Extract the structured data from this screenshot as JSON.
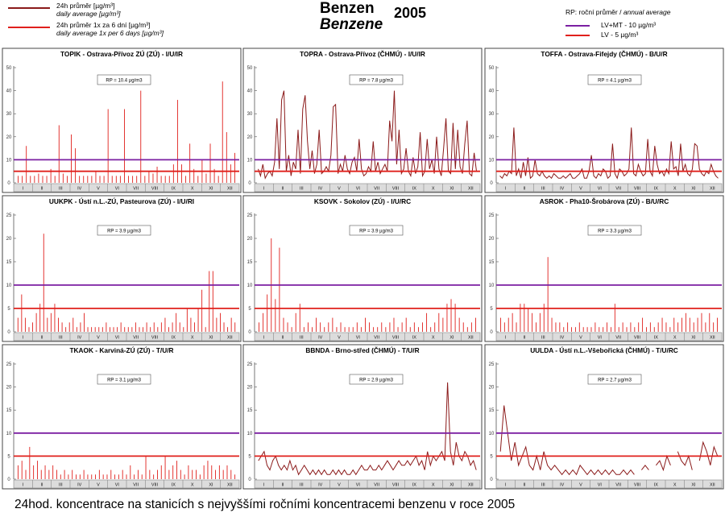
{
  "legend": {
    "daily": {
      "cz": "24h průměr [µg/m³]",
      "en": "daily average [µg/m³]",
      "color": "#8b1a1a"
    },
    "sixday": {
      "cz": "24h průměr 1x za 6 dní [µg/m³]",
      "en": "daily average 1x per 6 days [µg/m³]",
      "color": "#e0201c"
    }
  },
  "title": {
    "cz": "Benzen",
    "en": "Benzene",
    "year": "2005"
  },
  "limits_legend": {
    "header_cz": "RP: roční průměr /",
    "header_en": "annual average",
    "lvmt": {
      "label": "LV+MT  -  10  µg/m³",
      "color": "#7b1fa2"
    },
    "lv": {
      "label": "LV     -  5  µg/m³",
      "color": "#e0201c"
    }
  },
  "caption": "24hod. koncentrace na stanicích s nejvyššími ročními koncentracemi benzenu v roce 2005",
  "chart_data": [
    {
      "type": "bar",
      "title": "TOPIK - Ostrava-Přívoz ZÚ (ZÚ) - I/U/IR",
      "rp_label": "RP = 10.4 µg/m3",
      "ylim": [
        0,
        50
      ],
      "yticks": [
        0,
        10,
        20,
        30,
        40,
        50
      ],
      "limits": [
        10,
        5
      ],
      "month_labels": [
        "I",
        "II",
        "III",
        "IV",
        "V",
        "VI",
        "VII",
        "VIII",
        "IX",
        "X",
        "XI",
        "XII"
      ],
      "series": [
        {
          "style": "bars",
          "values": [
            3,
            3,
            16,
            3,
            3,
            4,
            3,
            3,
            6,
            3,
            25,
            4,
            3,
            21,
            15,
            3,
            3,
            3,
            3,
            5,
            3,
            3,
            32,
            3,
            3,
            3,
            32,
            3,
            3,
            3,
            40,
            3,
            5,
            4,
            7,
            3,
            3,
            3,
            8,
            36,
            8,
            3,
            17,
            6,
            3,
            10,
            4,
            17,
            6,
            3,
            44,
            22,
            8,
            13
          ]
        }
      ]
    },
    {
      "type": "line",
      "title": "TOPRA - Ostrava-Přívoz (ČHMÚ) - I/U/IR",
      "rp_label": "RP = 7.8 µg/m3",
      "ylim": [
        0,
        50
      ],
      "yticks": [
        0,
        10,
        20,
        30,
        40,
        50
      ],
      "limits": [
        10,
        5
      ],
      "month_labels": [
        "I",
        "II",
        "III",
        "IV",
        "V",
        "VI",
        "VII",
        "VIII",
        "IX",
        "X",
        "XI",
        "XII"
      ],
      "series": [
        {
          "style": "line",
          "values": [
            6,
            3,
            8,
            2,
            4,
            5,
            3,
            9,
            28,
            6,
            36,
            40,
            5,
            12,
            3,
            9,
            6,
            23,
            4,
            32,
            38,
            18,
            6,
            14,
            4,
            8,
            23,
            4,
            5,
            7,
            5,
            12,
            33,
            34,
            4,
            8,
            5,
            12,
            6,
            4,
            9,
            11,
            5,
            19,
            6,
            3,
            4,
            7,
            5,
            18,
            5,
            9,
            4,
            6,
            8,
            5,
            27,
            18,
            40,
            8,
            23,
            4,
            6,
            15,
            5,
            3,
            11,
            4,
            7,
            22,
            3,
            5,
            19,
            6,
            10,
            4,
            20,
            6,
            3,
            15,
            28,
            5,
            4,
            26,
            6,
            23,
            7,
            4,
            17,
            27,
            4,
            3,
            13,
            5
          ]
        }
      ]
    },
    {
      "type": "line",
      "title": "TOFFA - Ostrava-Fifejdy (ČHMÚ) - B/U/R",
      "rp_label": "RP = 4.1 µg/m3",
      "ylim": [
        0,
        50
      ],
      "yticks": [
        0,
        10,
        20,
        30,
        40,
        50
      ],
      "limits": [
        10,
        5
      ],
      "month_labels": [
        "I",
        "II",
        "III",
        "IV",
        "V",
        "VI",
        "VII",
        "VIII",
        "IX",
        "X",
        "XI",
        "XII"
      ],
      "series": [
        {
          "style": "line",
          "values": [
            3,
            2,
            4,
            3,
            5,
            4,
            24,
            3,
            6,
            2,
            9,
            3,
            11,
            2,
            3,
            10,
            4,
            3,
            5,
            3,
            2,
            3,
            2,
            4,
            3,
            2,
            2,
            3,
            2,
            3,
            4,
            2,
            2,
            3,
            4,
            6,
            2,
            2,
            5,
            12,
            3,
            2,
            4,
            3,
            6,
            5,
            2,
            3,
            17,
            4,
            2,
            6,
            5,
            3,
            4,
            6,
            24,
            4,
            3,
            8,
            5,
            3,
            4,
            19,
            5,
            3,
            16,
            8,
            4,
            5,
            3,
            6,
            4,
            18,
            6,
            7,
            3,
            17,
            5,
            8,
            4,
            3,
            6,
            17,
            16,
            6,
            4,
            3,
            5,
            4,
            8,
            5,
            3,
            2
          ]
        }
      ]
    },
    {
      "type": "bar",
      "title": "UUKPK - Ústí n.L.-ZÚ, Pasteurova (ZÚ) - I/U/RI",
      "rp_label": "RP = 3.9 µg/m3",
      "ylim": [
        0,
        25
      ],
      "yticks": [
        0,
        5,
        10,
        15,
        20,
        25
      ],
      "limits": [
        10,
        5
      ],
      "month_labels": [
        "I",
        "II",
        "III",
        "IV",
        "V",
        "VI",
        "VII",
        "VIII",
        "IX",
        "X",
        "XI",
        "XII"
      ],
      "series": [
        {
          "style": "bars",
          "values": [
            3,
            8,
            3,
            1,
            2,
            4,
            6,
            21,
            3,
            4,
            6,
            3,
            2,
            1,
            2,
            3,
            1,
            2,
            4,
            1,
            1,
            1,
            1,
            1,
            2,
            1,
            1,
            1,
            2,
            1,
            1,
            1,
            2,
            1,
            1,
            2,
            1,
            2,
            1,
            2,
            3,
            1,
            2,
            4,
            2,
            1,
            5,
            3,
            2,
            5,
            9,
            1,
            13,
            13,
            3,
            4,
            2,
            1,
            3,
            2
          ]
        }
      ]
    },
    {
      "type": "bar",
      "title": "KSOVK - Sokolov (ZÚ) - I/U/RC",
      "rp_label": "RP = 3.9 µg/m3",
      "ylim": [
        0,
        25
      ],
      "yticks": [
        0,
        5,
        10,
        15,
        20,
        25
      ],
      "limits": [
        10,
        5
      ],
      "month_labels": [
        "I",
        "II",
        "III",
        "IV",
        "V",
        "VI",
        "VII",
        "VIII",
        "IX",
        "X",
        "XI",
        "XII"
      ],
      "series": [
        {
          "style": "bars",
          "values": [
            2,
            4,
            8,
            20,
            7,
            18,
            3,
            2,
            1,
            4,
            6,
            1,
            2,
            1,
            3,
            2,
            1,
            2,
            3,
            1,
            2,
            1,
            1,
            1,
            2,
            1,
            3,
            2,
            1,
            1,
            2,
            1,
            2,
            3,
            1,
            2,
            3,
            1,
            2,
            1,
            2,
            4,
            1,
            2,
            4,
            3,
            6,
            7,
            6,
            3,
            2,
            1,
            2,
            3
          ]
        }
      ]
    },
    {
      "type": "bar",
      "title": "ASROK - Pha10-Šrobárova (ZÚ) - B/U/RC",
      "rp_label": "RP = 3.3 µg/m3",
      "ylim": [
        0,
        25
      ],
      "yticks": [
        0,
        5,
        10,
        15,
        20,
        25
      ],
      "limits": [
        10,
        5
      ],
      "month_labels": [
        "I",
        "II",
        "III",
        "IV",
        "V",
        "VI",
        "VII",
        "VIII",
        "IX",
        "X",
        "XI",
        "XII"
      ],
      "series": [
        {
          "style": "bars",
          "values": [
            3,
            2,
            3,
            4,
            2,
            6,
            6,
            5,
            4,
            2,
            4,
            6,
            16,
            3,
            2,
            2,
            1,
            2,
            1,
            1,
            2,
            1,
            1,
            1,
            2,
            1,
            1,
            2,
            1,
            6,
            1,
            2,
            1,
            2,
            1,
            2,
            3,
            1,
            2,
            1,
            2,
            3,
            2,
            1,
            3,
            2,
            3,
            4,
            3,
            2,
            3,
            4,
            2,
            4,
            2,
            3
          ]
        }
      ]
    },
    {
      "type": "bar",
      "title": "TKAOK - Karviná-ZÚ (ZÚ) - T/U/R",
      "rp_label": "RP = 3.1 µg/m3",
      "ylim": [
        0,
        25
      ],
      "yticks": [
        0,
        5,
        10,
        15,
        20,
        25
      ],
      "limits": [
        10,
        5
      ],
      "month_labels": [
        "I",
        "II",
        "III",
        "IV",
        "V",
        "VI",
        "VII",
        "VIII",
        "IX",
        "X",
        "XI",
        "XII"
      ],
      "series": [
        {
          "style": "bars",
          "values": [
            3,
            4,
            2,
            7,
            3,
            4,
            2,
            3,
            2,
            3,
            2,
            1,
            2,
            1,
            2,
            1,
            1,
            2,
            1,
            1,
            1,
            2,
            1,
            1,
            2,
            1,
            1,
            2,
            1,
            3,
            1,
            2,
            1,
            5,
            2,
            1,
            2,
            3,
            5,
            2,
            3,
            4,
            2,
            1,
            3,
            2,
            2,
            1,
            3,
            4,
            3,
            2,
            3,
            2,
            3,
            2,
            1
          ]
        }
      ]
    },
    {
      "type": "line",
      "title": "BBNDA - Brno-střed (ČHMÚ) - T/U/R",
      "rp_label": "RP = 2.9 µg/m3",
      "ylim": [
        0,
        25
      ],
      "yticks": [
        0,
        5,
        10,
        15,
        20,
        25
      ],
      "limits": [
        10,
        5
      ],
      "month_labels": [
        "I",
        "II",
        "III",
        "IV",
        "V",
        "VI",
        "VII",
        "VIII",
        "IX",
        "X",
        "XI",
        "XII"
      ],
      "series": [
        {
          "style": "line",
          "values": [
            4,
            5,
            6,
            3,
            2,
            4,
            5,
            3,
            2,
            3,
            2,
            4,
            2,
            3,
            1,
            2,
            3,
            2,
            1,
            2,
            1,
            2,
            1,
            2,
            1,
            1,
            2,
            1,
            2,
            1,
            2,
            1,
            1,
            2,
            1,
            2,
            3,
            2,
            2,
            3,
            2,
            2,
            3,
            2,
            3,
            4,
            3,
            2,
            3,
            4,
            3,
            3,
            4,
            3,
            4,
            5,
            3,
            4,
            2,
            6,
            3,
            5,
            4,
            5,
            6,
            4,
            21,
            6,
            3,
            8,
            5,
            4,
            6,
            5,
            3,
            4,
            2
          ]
        }
      ]
    },
    {
      "type": "line",
      "title": "UULDA - Ústí n.L.-Všebořická (ČHMÚ) - T/U/RC",
      "rp_label": "RP = 2.7 µg/m3",
      "ylim": [
        0,
        25
      ],
      "yticks": [
        0,
        5,
        10,
        15,
        20,
        25
      ],
      "limits": [
        10,
        5
      ],
      "month_labels": [
        "I",
        "II",
        "III",
        "IV",
        "V",
        "VI",
        "VII",
        "VIII",
        "IX",
        "X",
        "XI",
        "XII"
      ],
      "series": [
        {
          "style": "line",
          "values": [
            6,
            16,
            10,
            4,
            8,
            3,
            5,
            7,
            3,
            2,
            5,
            2,
            6,
            3,
            2,
            3,
            2,
            1,
            2,
            1,
            2,
            1,
            3,
            2,
            1,
            2,
            1,
            2,
            1,
            2,
            1,
            2,
            1,
            1,
            2,
            1,
            2,
            1,
            null,
            2,
            3,
            2,
            null,
            3,
            4,
            2,
            5,
            3,
            null,
            6,
            4,
            3,
            5,
            2,
            null,
            4,
            8,
            6,
            3,
            7,
            5
          ]
        }
      ]
    }
  ]
}
